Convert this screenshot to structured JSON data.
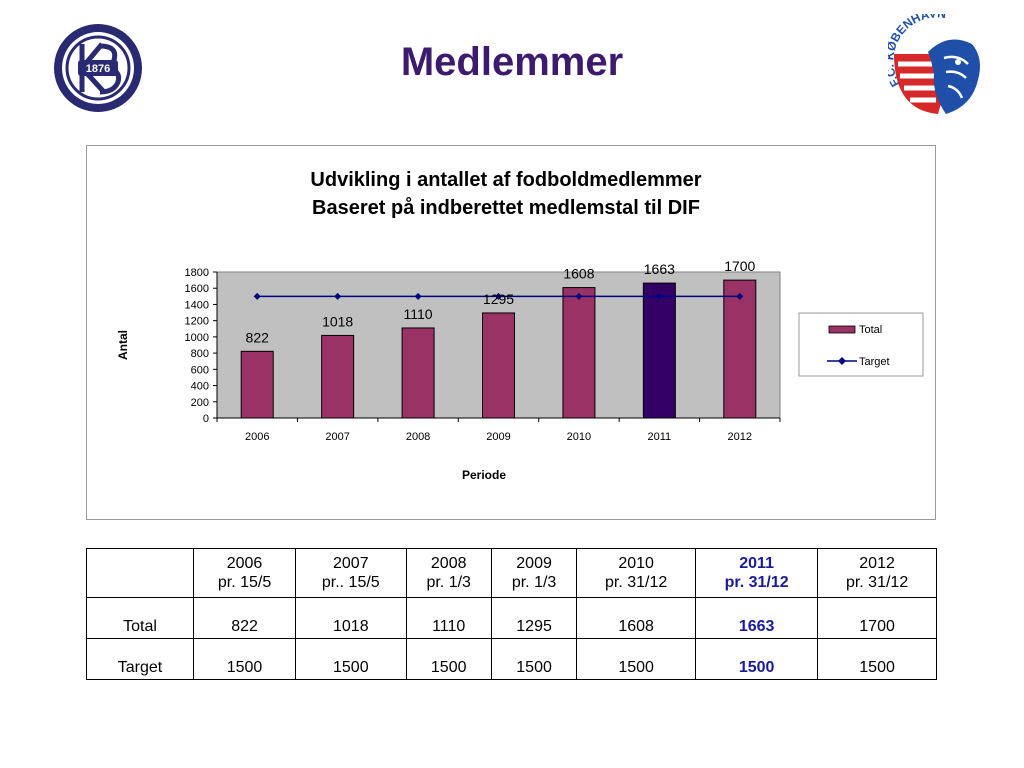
{
  "page": {
    "title": "Medlemmer"
  },
  "logos": {
    "left_text": "1876",
    "right_text": "F.C. KØBENHAVN"
  },
  "chart_data": {
    "type": "bar",
    "title": "Udvikling i antallet af fodboldmedlemmer",
    "subtitle": "Baseret på indberettet medlemstal til DIF",
    "xlabel": "Periode",
    "ylabel": "Antal",
    "categories": [
      "2006",
      "2007",
      "2008",
      "2009",
      "2010",
      "2011",
      "2012"
    ],
    "ylim": [
      0,
      1800
    ],
    "yticks": [
      0,
      200,
      400,
      600,
      800,
      1000,
      1200,
      1400,
      1600,
      1800
    ],
    "highlight_category": "2011",
    "grid": false,
    "legend_position": "right",
    "series": [
      {
        "name": "Total",
        "kind": "bar",
        "values": [
          822,
          1018,
          1110,
          1295,
          1608,
          1663,
          1700
        ],
        "color": "#993366",
        "highlight_color": "#330066"
      },
      {
        "name": "Target",
        "kind": "line",
        "values": [
          1500,
          1500,
          1500,
          1500,
          1500,
          1500,
          1500
        ],
        "color": "#000080"
      }
    ],
    "plot_background": "#c0c0c0"
  },
  "table": {
    "highlight_column": 5,
    "columns": [
      {
        "year": "2006",
        "date": "pr. 15/5"
      },
      {
        "year": "2007",
        "date": "pr.. 15/5"
      },
      {
        "year": "2008",
        "date": "pr. 1/3"
      },
      {
        "year": "2009",
        "date": "pr. 1/3"
      },
      {
        "year": "2010",
        "date": "pr. 31/12"
      },
      {
        "year": "2011",
        "date": "pr. 31/12"
      },
      {
        "year": "2012",
        "date": "pr. 31/12"
      }
    ],
    "rows": [
      {
        "label": "Total",
        "values": [
          "822",
          "1018",
          "1110",
          "1295",
          "1608",
          "1663",
          "1700"
        ]
      },
      {
        "label": "Target",
        "values": [
          "1500",
          "1500",
          "1500",
          "1500",
          "1500",
          "1500",
          "1500"
        ]
      }
    ]
  }
}
